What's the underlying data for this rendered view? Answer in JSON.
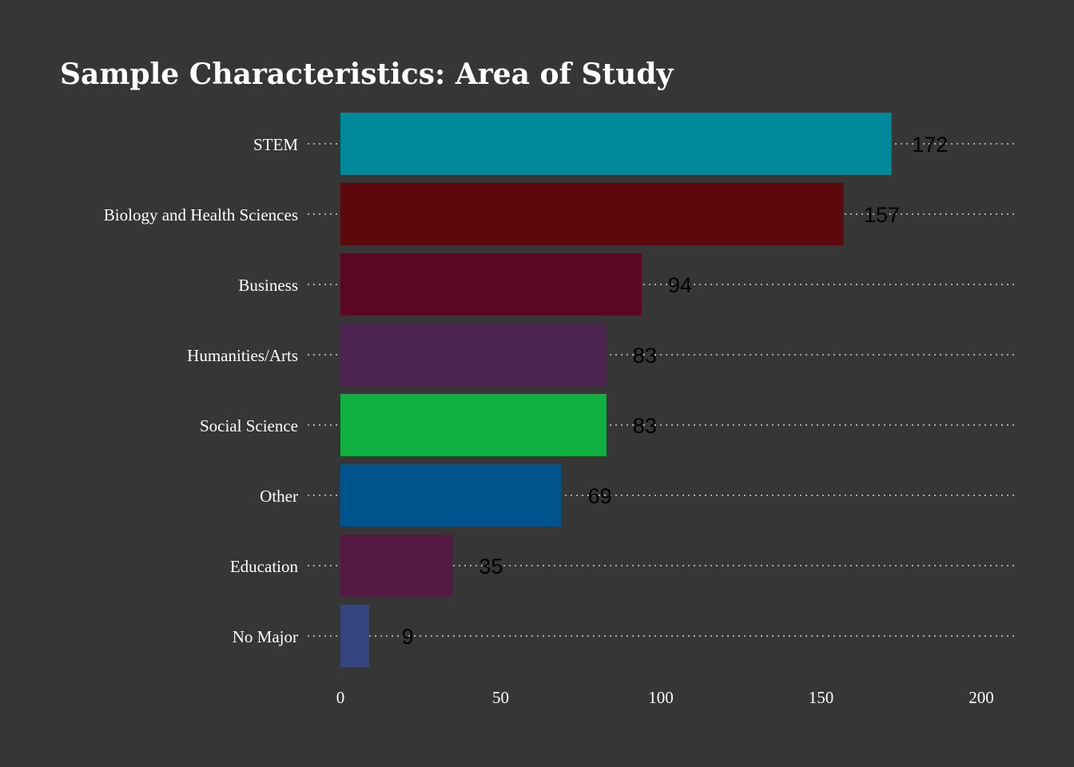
{
  "chart_data": {
    "type": "bar",
    "orientation": "horizontal",
    "title": "Sample Characteristics: Area of Study",
    "xlabel": "",
    "ylabel": "",
    "xlim": [
      0,
      200
    ],
    "x_ticks": [
      0,
      50,
      100,
      150,
      200
    ],
    "grid": "horizontal dotted",
    "legend": "none",
    "categories": [
      "STEM",
      "Biology and Health Sciences",
      "Business",
      "Humanities/Arts",
      "Social Science",
      "Other",
      "Education",
      "No Major"
    ],
    "values": [
      172,
      157,
      94,
      83,
      83,
      69,
      35,
      9
    ],
    "colors": [
      "#00899B",
      "#5B090C",
      "#5C0722",
      "#4D2450",
      "#10B041",
      "#00548E",
      "#551A43",
      "#354580"
    ]
  },
  "theme": {
    "background": "#363636",
    "text_color": "#FFFFFF",
    "value_label_color": "#000000",
    "grid_color": "#CFCFCF"
  }
}
